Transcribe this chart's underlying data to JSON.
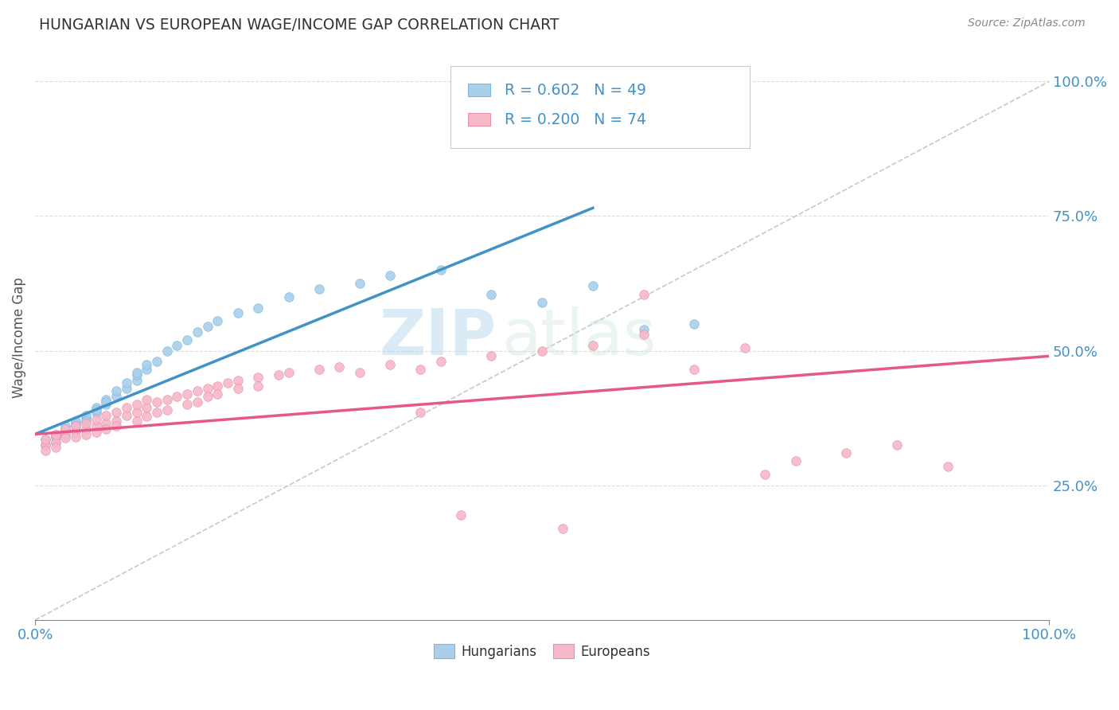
{
  "title": "HUNGARIAN VS EUROPEAN WAGE/INCOME GAP CORRELATION CHART",
  "source_text": "Source: ZipAtlas.com",
  "ylabel": "Wage/Income Gap",
  "legend_label1": "Hungarians",
  "legend_label2": "Europeans",
  "R1": 0.602,
  "N1": 49,
  "R2": 0.2,
  "N2": 74,
  "color_blue": "#aacfea",
  "color_pink": "#f7b8c8",
  "color_blue_line": "#4292c6",
  "color_pink_line": "#e8578a",
  "color_blue_text": "#4292c6",
  "background_color": "#ffffff",
  "grid_color": "#dddddd",
  "watermark_zip": "ZIP",
  "watermark_atlas": "atlas",
  "blue_scatter_x": [
    0.01,
    0.01,
    0.02,
    0.02,
    0.02,
    0.03,
    0.03,
    0.03,
    0.03,
    0.04,
    0.04,
    0.04,
    0.05,
    0.05,
    0.05,
    0.06,
    0.06,
    0.06,
    0.07,
    0.07,
    0.07,
    0.08,
    0.08,
    0.09,
    0.09,
    0.1,
    0.1,
    0.1,
    0.11,
    0.11,
    0.12,
    0.13,
    0.14,
    0.15,
    0.16,
    0.17,
    0.18,
    0.2,
    0.22,
    0.25,
    0.28,
    0.32,
    0.35,
    0.4,
    0.45,
    0.5,
    0.55,
    0.6,
    0.65
  ],
  "blue_scatter_y": [
    0.335,
    0.325,
    0.345,
    0.34,
    0.33,
    0.35,
    0.355,
    0.345,
    0.36,
    0.365,
    0.37,
    0.36,
    0.375,
    0.38,
    0.37,
    0.385,
    0.395,
    0.39,
    0.4,
    0.41,
    0.405,
    0.415,
    0.425,
    0.43,
    0.44,
    0.445,
    0.455,
    0.46,
    0.465,
    0.475,
    0.48,
    0.5,
    0.51,
    0.52,
    0.535,
    0.545,
    0.555,
    0.57,
    0.58,
    0.6,
    0.615,
    0.625,
    0.64,
    0.65,
    0.605,
    0.59,
    0.62,
    0.54,
    0.55
  ],
  "pink_scatter_x": [
    0.01,
    0.01,
    0.01,
    0.02,
    0.02,
    0.02,
    0.02,
    0.03,
    0.03,
    0.03,
    0.04,
    0.04,
    0.04,
    0.05,
    0.05,
    0.05,
    0.06,
    0.06,
    0.06,
    0.07,
    0.07,
    0.07,
    0.08,
    0.08,
    0.08,
    0.09,
    0.09,
    0.1,
    0.1,
    0.1,
    0.11,
    0.11,
    0.11,
    0.12,
    0.12,
    0.13,
    0.13,
    0.14,
    0.15,
    0.15,
    0.16,
    0.16,
    0.17,
    0.17,
    0.18,
    0.18,
    0.19,
    0.2,
    0.2,
    0.22,
    0.22,
    0.24,
    0.25,
    0.28,
    0.3,
    0.32,
    0.35,
    0.38,
    0.4,
    0.45,
    0.5,
    0.55,
    0.6,
    0.65,
    0.7,
    0.75,
    0.8,
    0.85,
    0.9,
    0.52,
    0.42,
    0.38,
    0.6,
    0.72
  ],
  "pink_scatter_y": [
    0.325,
    0.335,
    0.315,
    0.34,
    0.33,
    0.345,
    0.32,
    0.348,
    0.338,
    0.355,
    0.35,
    0.36,
    0.34,
    0.355,
    0.365,
    0.345,
    0.36,
    0.372,
    0.348,
    0.365,
    0.38,
    0.355,
    0.37,
    0.385,
    0.36,
    0.38,
    0.395,
    0.385,
    0.4,
    0.37,
    0.395,
    0.41,
    0.378,
    0.405,
    0.385,
    0.41,
    0.39,
    0.415,
    0.42,
    0.4,
    0.425,
    0.405,
    0.43,
    0.415,
    0.435,
    0.42,
    0.44,
    0.445,
    0.43,
    0.45,
    0.435,
    0.455,
    0.46,
    0.465,
    0.47,
    0.46,
    0.475,
    0.465,
    0.48,
    0.49,
    0.5,
    0.51,
    0.53,
    0.465,
    0.505,
    0.295,
    0.31,
    0.325,
    0.285,
    0.17,
    0.195,
    0.385,
    0.605,
    0.27
  ],
  "xlim": [
    0.0,
    1.0
  ],
  "ylim": [
    0.0,
    1.05
  ],
  "yticks": [
    0.25,
    0.5,
    0.75,
    1.0
  ],
  "ytick_labels": [
    "25.0%",
    "50.0%",
    "75.0%",
    "100.0%"
  ],
  "xtick_labels": [
    "0.0%",
    "100.0%"
  ],
  "blue_line_x0": 0.0,
  "blue_line_x1": 0.55,
  "blue_line_y0": 0.345,
  "blue_line_y1": 0.765,
  "pink_line_x0": 0.0,
  "pink_line_x1": 1.0,
  "pink_line_y0": 0.345,
  "pink_line_y1": 0.49,
  "ref_line_x": [
    0.0,
    1.0
  ],
  "ref_line_y": [
    0.0,
    1.0
  ]
}
